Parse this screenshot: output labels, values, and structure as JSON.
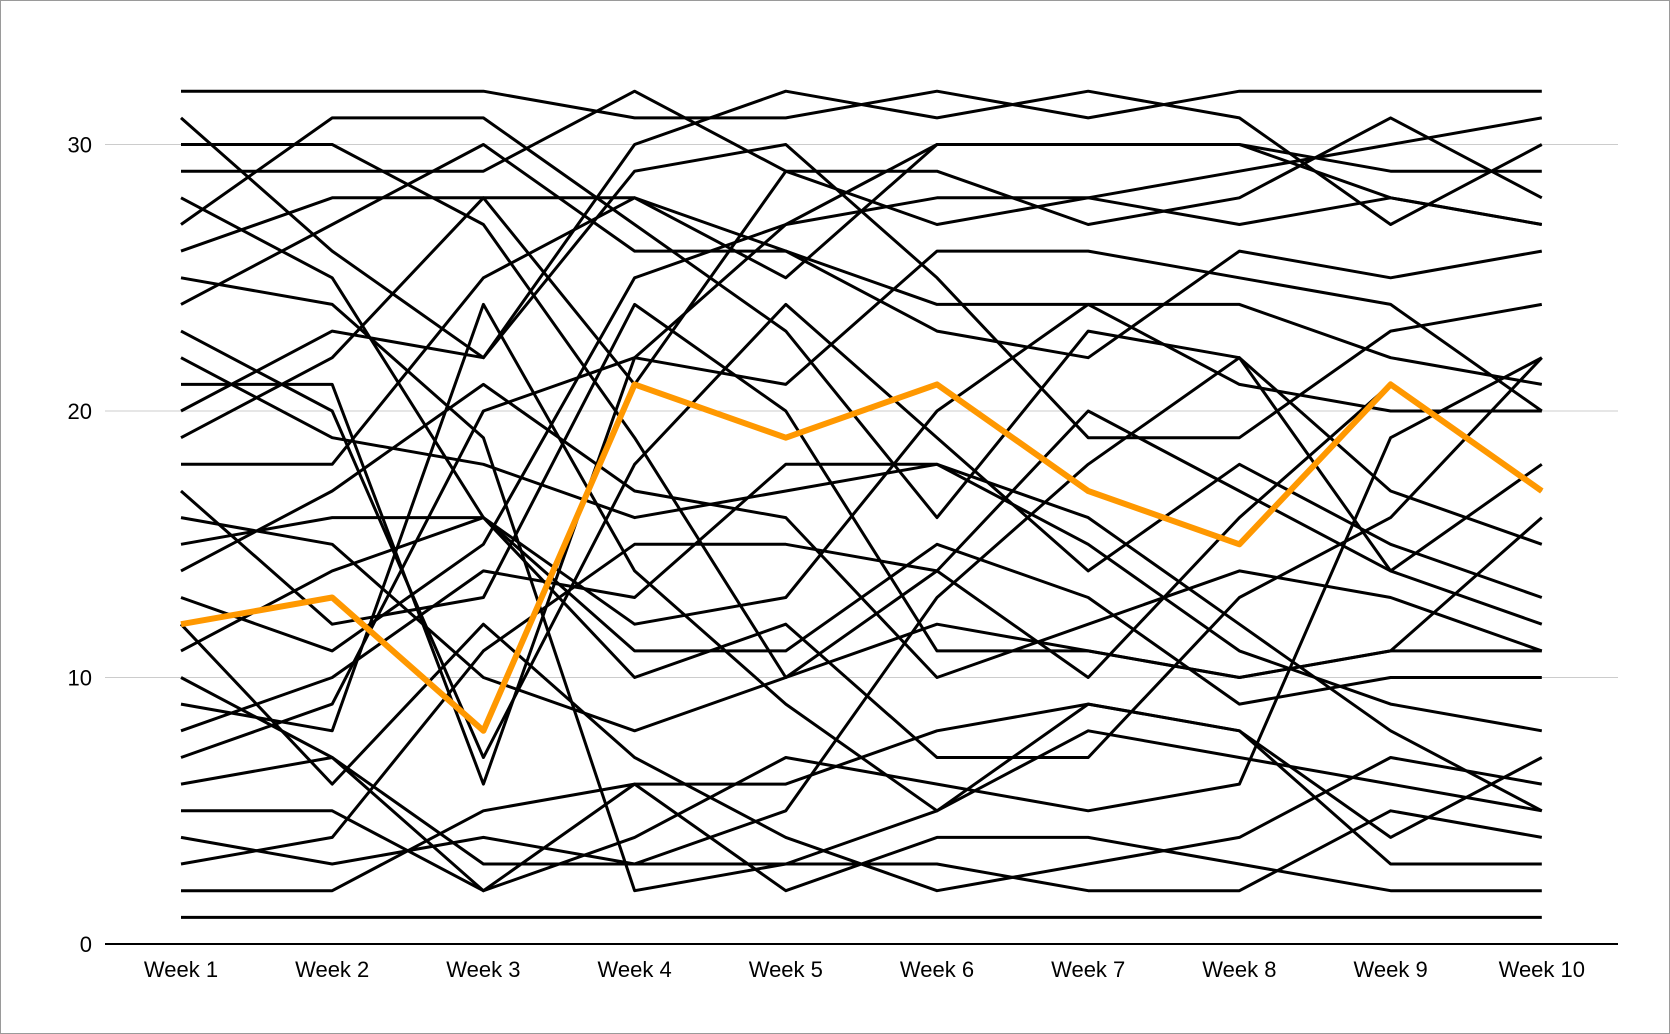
{
  "chart_data": {
    "type": "line",
    "title": "",
    "xlabel": "",
    "ylabel": "",
    "categories": [
      "Week 1",
      "Week 2",
      "Week 3",
      "Week 4",
      "Week 5",
      "Week 6",
      "Week 7",
      "Week 8",
      "Week 9",
      "Week 10"
    ],
    "ylim": [
      0,
      32
    ],
    "yticks": [
      0,
      10,
      20,
      30
    ],
    "grid": true,
    "legend": "none",
    "colors": {
      "default_series": "#000000",
      "highlight_series": "#ff9800",
      "grid": "#cccccc"
    },
    "highlight_series_index": 32,
    "series": [
      {
        "values": [
          1,
          1,
          1,
          1,
          1,
          1,
          1,
          1,
          1,
          1
        ]
      },
      {
        "values": [
          32,
          32,
          32,
          31,
          31,
          32,
          31,
          32,
          32,
          32
        ]
      },
      {
        "values": [
          31,
          26,
          22,
          30,
          32,
          31,
          32,
          31,
          27,
          30
        ]
      },
      {
        "values": [
          30,
          30,
          27,
          19,
          10,
          12,
          11,
          10,
          11,
          11
        ]
      },
      {
        "values": [
          29,
          29,
          29,
          32,
          29,
          29,
          27,
          28,
          31,
          28
        ]
      },
      {
        "values": [
          28,
          25,
          16,
          10,
          12,
          7,
          7,
          13,
          16,
          22
        ]
      },
      {
        "values": [
          27,
          31,
          31,
          27,
          23,
          16,
          23,
          22,
          14,
          18
        ]
      },
      {
        "values": [
          26,
          28,
          28,
          21,
          29,
          27,
          28,
          29,
          30,
          31
        ]
      },
      {
        "values": [
          25,
          24,
          19,
          2,
          3,
          5,
          9,
          8,
          3,
          3
        ]
      },
      {
        "values": [
          24,
          27,
          30,
          26,
          26,
          24,
          24,
          21,
          20,
          20
        ]
      },
      {
        "values": [
          23,
          20,
          7,
          18,
          24,
          19,
          14,
          18,
          15,
          13
        ]
      },
      {
        "values": [
          22,
          19,
          18,
          16,
          17,
          18,
          15,
          11,
          9,
          8
        ]
      },
      {
        "values": [
          21,
          21,
          6,
          22,
          27,
          30,
          30,
          30,
          29,
          29
        ]
      },
      {
        "values": [
          20,
          23,
          22,
          29,
          30,
          25,
          19,
          19,
          23,
          24
        ]
      },
      {
        "values": [
          19,
          22,
          28,
          28,
          26,
          23,
          22,
          26,
          25,
          26
        ]
      },
      {
        "values": [
          18,
          18,
          25,
          28,
          25,
          30,
          30,
          30,
          28,
          27
        ]
      },
      {
        "values": [
          17,
          12,
          13,
          24,
          20,
          11,
          11,
          10,
          11,
          16
        ]
      },
      {
        "values": [
          16,
          15,
          10,
          8,
          10,
          14,
          20,
          17,
          14,
          12
        ]
      },
      {
        "values": [
          15,
          16,
          16,
          12,
          13,
          20,
          24,
          24,
          22,
          21
        ]
      },
      {
        "values": [
          14,
          17,
          21,
          17,
          16,
          10,
          12,
          14,
          13,
          11
        ]
      },
      {
        "values": [
          13,
          11,
          15,
          25,
          27,
          28,
          28,
          27,
          28,
          27
        ]
      },
      {
        "values": [
          12,
          6,
          12,
          7,
          4,
          2,
          3,
          4,
          7,
          6
        ]
      },
      {
        "values": [
          11,
          14,
          16,
          11,
          11,
          15,
          13,
          9,
          10,
          10
        ]
      },
      {
        "values": [
          10,
          7,
          2,
          6,
          6,
          8,
          9,
          8,
          4,
          7
        ]
      },
      {
        "values": [
          9,
          8,
          24,
          14,
          9,
          5,
          8,
          7,
          6,
          5
        ]
      },
      {
        "values": [
          8,
          10,
          14,
          13,
          18,
          18,
          16,
          12,
          8,
          5
        ]
      },
      {
        "values": [
          7,
          9,
          20,
          22,
          21,
          26,
          26,
          25,
          24,
          20
        ]
      },
      {
        "values": [
          6,
          7,
          3,
          3,
          3,
          3,
          2,
          2,
          5,
          4
        ]
      },
      {
        "values": [
          5,
          5,
          2,
          4,
          7,
          6,
          5,
          6,
          19,
          22
        ]
      },
      {
        "values": [
          4,
          3,
          4,
          3,
          5,
          13,
          18,
          22,
          17,
          15
        ]
      },
      {
        "values": [
          3,
          4,
          11,
          15,
          15,
          14,
          10,
          16,
          21,
          17
        ]
      },
      {
        "values": [
          2,
          2,
          5,
          6,
          2,
          4,
          4,
          3,
          2,
          2
        ]
      },
      {
        "values": [
          12,
          13,
          8,
          21,
          19,
          21,
          17,
          15,
          21,
          17
        ]
      }
    ]
  }
}
